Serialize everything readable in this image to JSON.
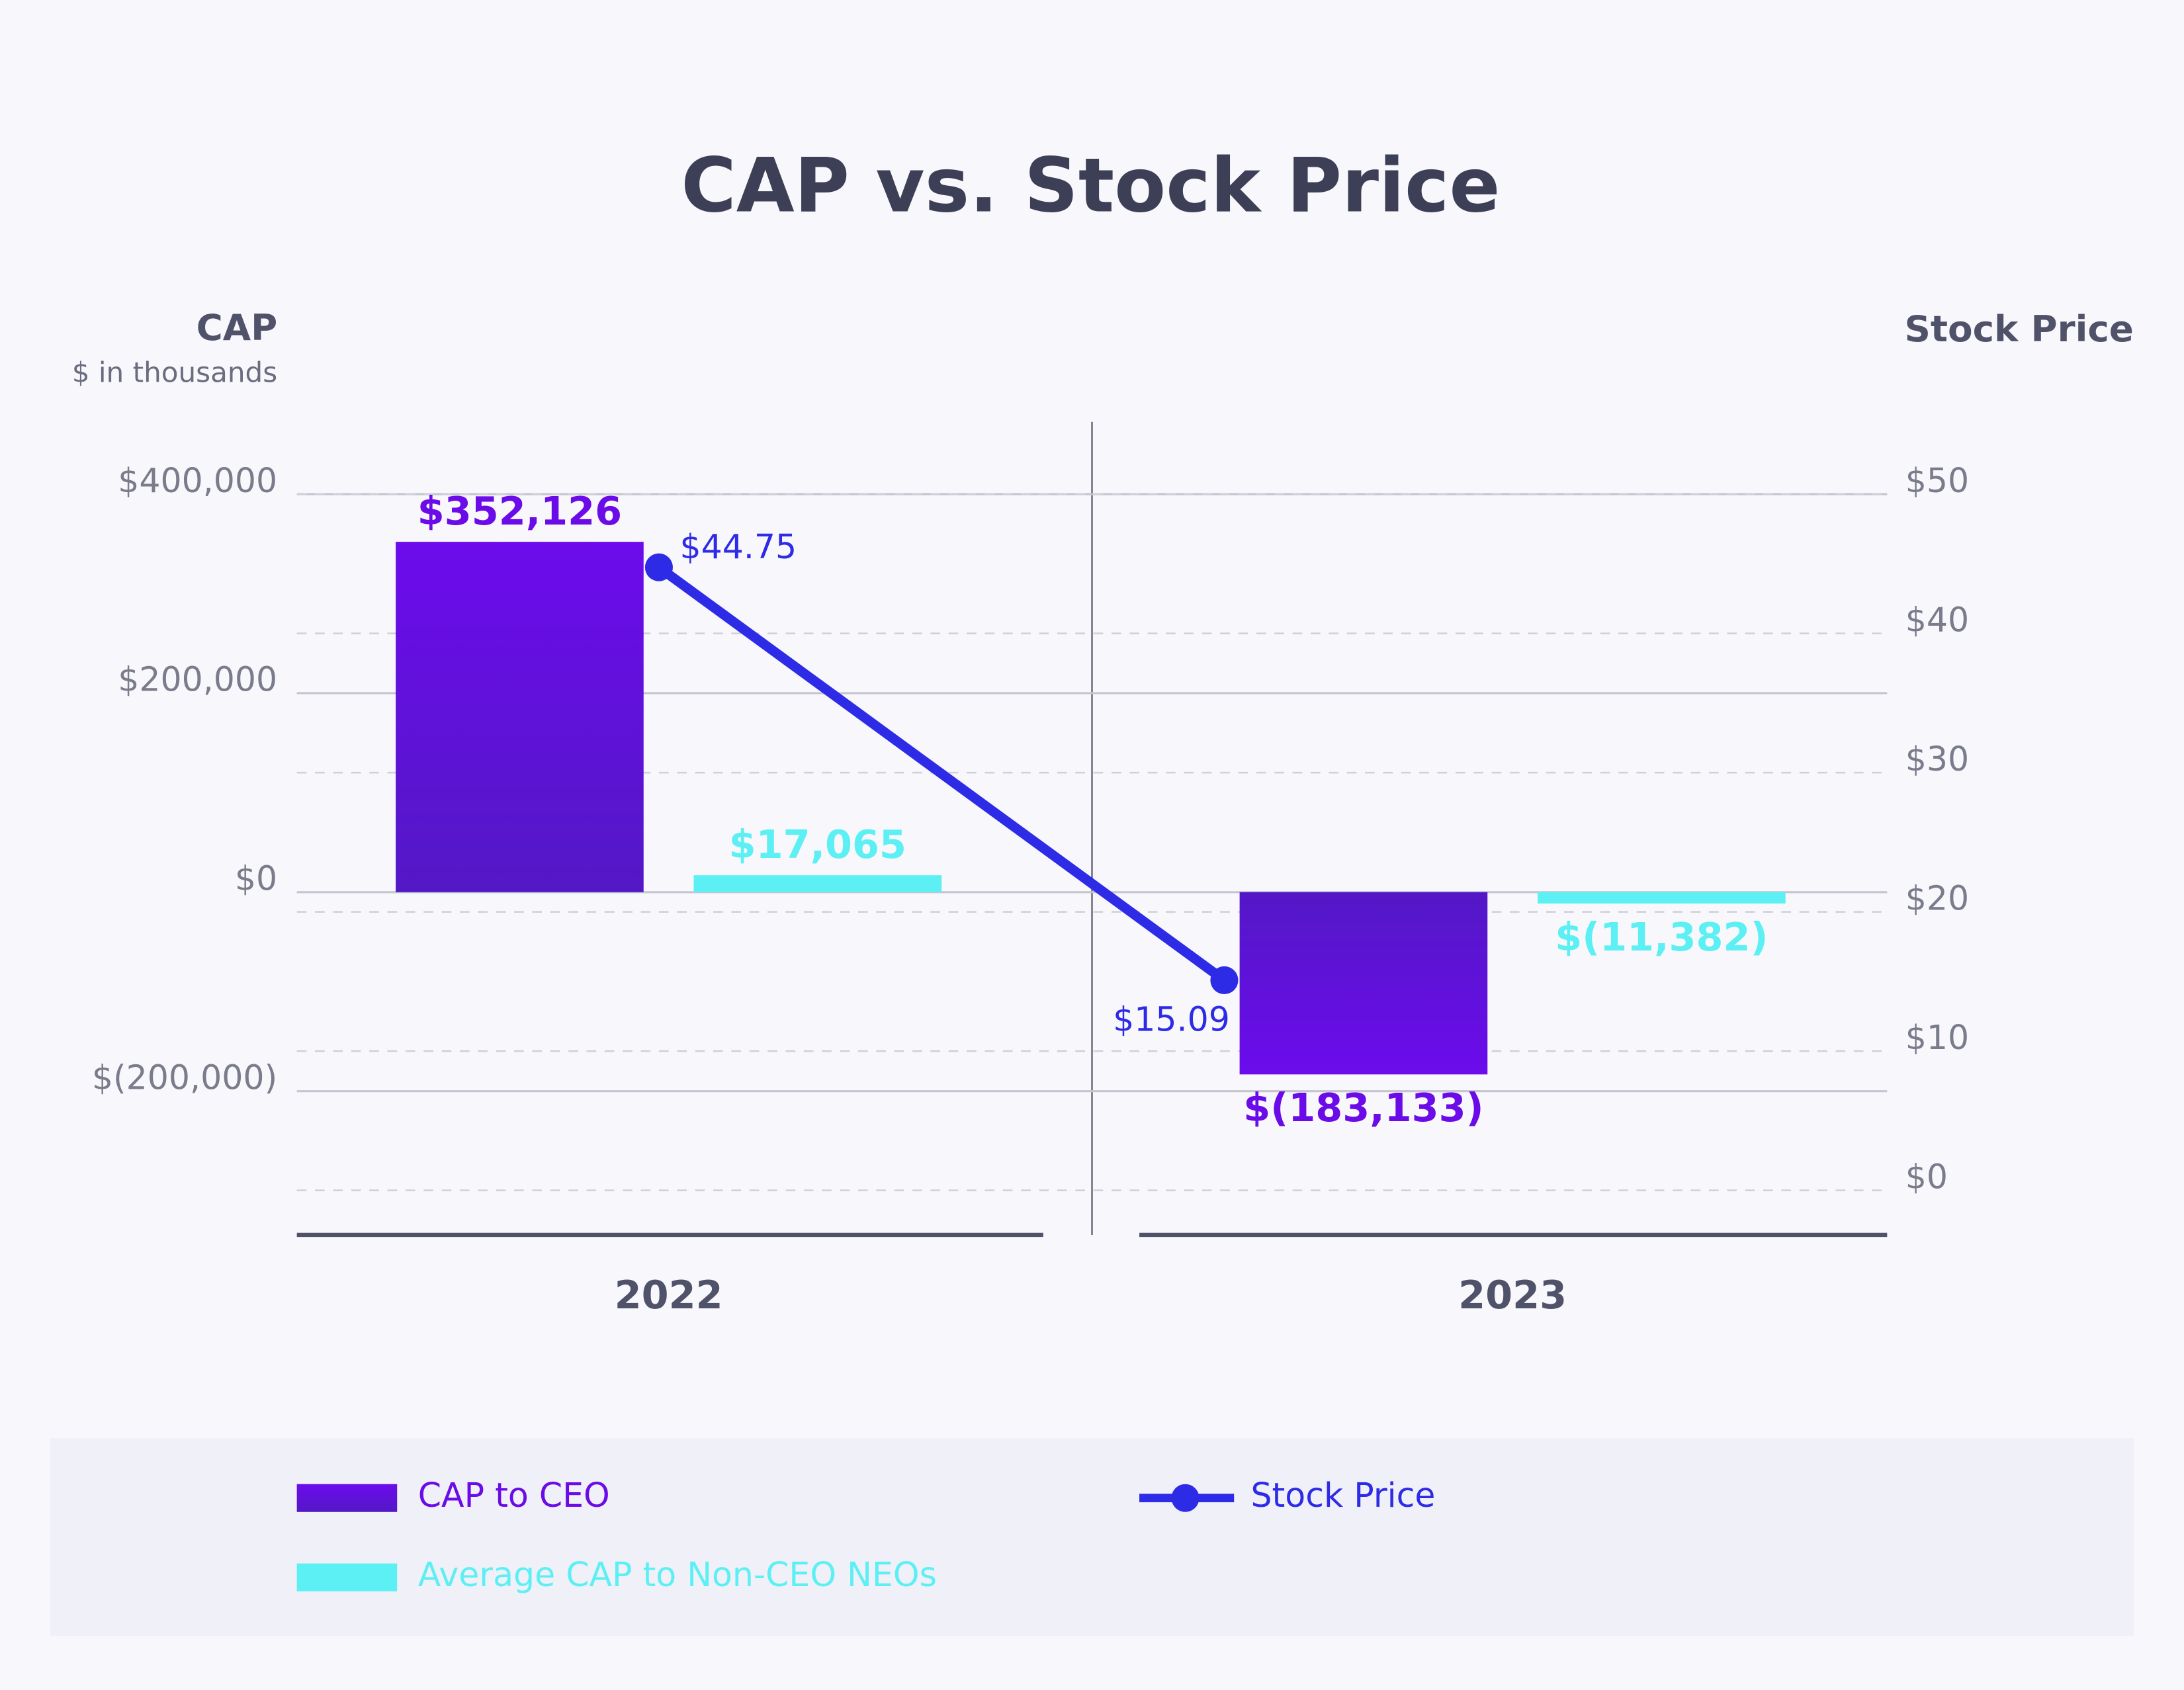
{
  "chart_data": {
    "type": "bar",
    "title": "CAP vs. Stock Price",
    "y_title": "CAP",
    "y_subtitle": "$ in thousands",
    "y2_title": "Stock Price",
    "categories": [
      "2022",
      "2023"
    ],
    "series": [
      {
        "name": "CAP to CEO",
        "color": "#6a0be8",
        "values": [
          352126,
          -183133
        ],
        "value_labels": [
          "$352,126",
          "$(183,133)"
        ]
      },
      {
        "name": "Average CAP to Non-CEO NEOs",
        "color": "#5cf0f5",
        "values": [
          17065,
          -11382
        ],
        "value_labels": [
          "$17,065",
          "$(11,382)"
        ]
      },
      {
        "name": "Stock Price",
        "type": "line",
        "axis": "y2",
        "color": "#2e2be6",
        "values": [
          44.75,
          15.09
        ],
        "value_labels": [
          "$44.75",
          "$15.09"
        ]
      }
    ],
    "ylim": [
      -350000,
      475500
    ],
    "yticks": [
      {
        "value": -200000,
        "label": "$(200,000)"
      },
      {
        "value": 0,
        "label": "$0"
      },
      {
        "value": 200000,
        "label": "$200,000"
      },
      {
        "value": 400000,
        "label": "$400,000"
      }
    ],
    "y2lim": [
      -3.6,
      55.4
    ],
    "y2ticks": [
      {
        "value": 0,
        "label": "$0"
      },
      {
        "value": 10,
        "label": "$10"
      },
      {
        "value": 20,
        "label": "$20"
      },
      {
        "value": 30,
        "label": "$30"
      },
      {
        "value": 40,
        "label": "$40"
      },
      {
        "value": 50,
        "label": "$50"
      }
    ],
    "grid": true
  }
}
